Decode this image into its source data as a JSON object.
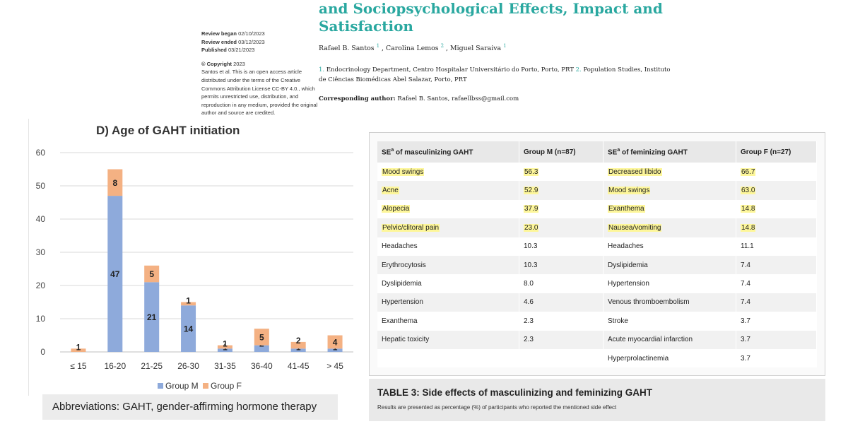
{
  "header": {
    "title_line1": "and Sociopsychological Effects, Impact and",
    "title_line2": "Satisfaction",
    "review": {
      "began_label": "Review began",
      "began_date": "02/10/2023",
      "ended_label": "Review ended",
      "ended_date": "03/12/2023",
      "published_label": "Published",
      "published_date": "03/21/2023",
      "copyright_label": "© Copyright",
      "copyright_year": "2023",
      "license_text": "Santos et al. This is an open access article distributed under the terms of the Creative Commons Attribution License CC-BY 4.0., which permits unrestricted use, distribution, and reproduction in any medium, provided the original author and source are credited."
    },
    "authors": [
      {
        "name": "Rafael B. Santos",
        "sup": "1",
        "sep": " , "
      },
      {
        "name": "Carolina Lemos",
        "sup": "2",
        "sep": " , "
      },
      {
        "name": "Miguel Saraiva",
        "sup": "1",
        "sep": ""
      }
    ],
    "affil1_num": "1.",
    "affil1_text": "Endocrinology Department, Centro Hospitalar Universitário do Porto, Porto, PRT",
    "affil2_num": "2.",
    "affil2_text": "Population Studies, Instituto de Ciências Biomédicas Abel Salazar, Porto, PRT",
    "corr_label": "Corresponding author:",
    "corr_text": "Rafael B. Santos, rafaellbss@gmail.com"
  },
  "chart_data": {
    "type": "bar",
    "stacked": true,
    "title": "D) Age of GAHT initiation",
    "categories": [
      "≤ 15",
      "16-20",
      "21-25",
      "26-30",
      "31-35",
      "36-40",
      "41-45",
      "> 45"
    ],
    "series": [
      {
        "name": "Group M",
        "color": "#8eaadb",
        "values": [
          0,
          47,
          21,
          14,
          1,
          2,
          1,
          1
        ]
      },
      {
        "name": "Group F",
        "color": "#f4b183",
        "values": [
          1,
          8,
          5,
          1,
          1,
          5,
          2,
          4
        ]
      }
    ],
    "yticks": [
      "0",
      "10",
      "20",
      "30",
      "40",
      "50",
      "60"
    ],
    "ylim": [
      0,
      60
    ],
    "legend": [
      "Group M",
      "Group F"
    ],
    "legend_position": "bottom"
  },
  "abbreviations": "Abbreviations: GAHT, gender-affirming hormone therapy",
  "table": {
    "headers": {
      "masc_prefix": "SE",
      "masc_sup": "a",
      "masc_suffix": " of masculinizing GAHT",
      "group_m": "Group M (n=87)",
      "fem_prefix": "SE",
      "fem_sup": "a",
      "fem_suffix": " of feminizing GAHT",
      "group_f": "Group F (n=27)"
    },
    "highlight_color": "#fdf69a",
    "rows": [
      {
        "masc": "Mood swings",
        "m": "56.3",
        "fem": "Decreased libido",
        "f": "66.7",
        "hl": true
      },
      {
        "masc": "Acne",
        "m": "52.9",
        "fem": "Mood swings",
        "f": "63.0",
        "hl": true
      },
      {
        "masc": "Alopecia",
        "m": "37.9",
        "fem": "Exanthema",
        "f": "14.8",
        "hl": true
      },
      {
        "masc": "Pelvic/clitoral pain",
        "m": "23.0",
        "fem": "Nausea/vomiting",
        "f": "14.8",
        "hl": true
      },
      {
        "masc": "Headaches",
        "m": "10.3",
        "fem": "Headaches",
        "f": "11.1",
        "hl": false
      },
      {
        "masc": "Erythrocytosis",
        "m": "10.3",
        "fem": "Dyslipidemia",
        "f": "7.4",
        "hl": false
      },
      {
        "masc": "Dyslipidemia",
        "m": "8.0",
        "fem": "Hypertension",
        "f": "7.4",
        "hl": false
      },
      {
        "masc": "Hypertension",
        "m": "4.6",
        "fem": "Venous thromboembolism",
        "f": "7.4",
        "hl": false
      },
      {
        "masc": "Exanthema",
        "m": "2.3",
        "fem": "Stroke",
        "f": "3.7",
        "hl": false
      },
      {
        "masc": "Hepatic toxicity",
        "m": "2.3",
        "fem": "Acute myocardial infarction",
        "f": "3.7",
        "hl": false
      },
      {
        "masc": "",
        "m": "",
        "fem": "Hyperprolactinemia",
        "f": "3.7",
        "hl": false
      }
    ],
    "caption_title": "TABLE 3: Side effects of masculinizing and feminizing GAHT",
    "caption_note": "Results are presented as percentage (%) of participants who reported the mentioned side effect"
  }
}
